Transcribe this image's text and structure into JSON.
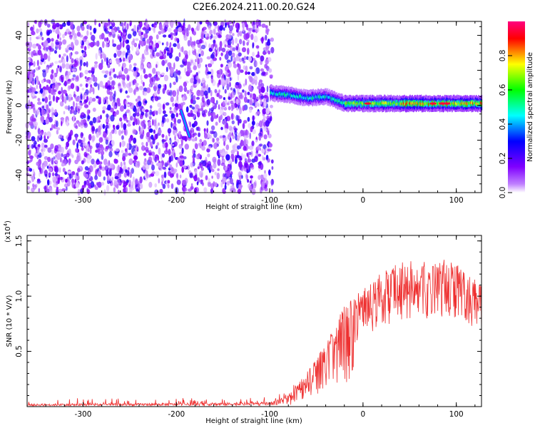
{
  "title": "C2E6.2024.211.00.20.G24",
  "chart_data": [
    {
      "type": "heatmap",
      "xlabel": "Height of straight line (km)",
      "ylabel": "Frequency (Hz)",
      "xlim": [
        -360,
        127
      ],
      "ylim": [
        -50,
        48
      ],
      "xticks": [
        -300,
        -200,
        -100,
        0,
        100
      ],
      "yticks": [
        -40,
        -20,
        0,
        20,
        40
      ],
      "colorbar": {
        "label": "Normalized spectral amplitude",
        "range": [
          0.0,
          1.0
        ],
        "ticks": [
          0.0,
          0.2,
          0.4,
          0.6,
          0.8
        ],
        "colormap": [
          "#ffffff",
          "#c080ff",
          "#8000ff",
          "#0000ff",
          "#00ffff",
          "#00ff00",
          "#ffff00",
          "#ff0000",
          "#ff0080"
        ]
      },
      "noise_region": {
        "x": [
          -360,
          -97
        ],
        "y": [
          -50,
          48
        ],
        "typical_amplitude": 0.3
      },
      "signal_track": [
        {
          "x": -100,
          "y": 7
        },
        {
          "x": -80,
          "y": 6
        },
        {
          "x": -60,
          "y": 4
        },
        {
          "x": -40,
          "y": 5
        },
        {
          "x": -20,
          "y": 1
        },
        {
          "x": 0,
          "y": 1
        },
        {
          "x": 20,
          "y": 1
        },
        {
          "x": 50,
          "y": 1
        },
        {
          "x": 80,
          "y": 1
        },
        {
          "x": 100,
          "y": 1
        },
        {
          "x": 127,
          "y": 1
        }
      ],
      "streak": {
        "x": [
          -195,
          -186
        ],
        "y": [
          -3,
          -18
        ],
        "amplitude": 0.45
      }
    },
    {
      "type": "line",
      "xlabel": "Height of straight line (km)",
      "ylabel": "SNR (10 * V/V)",
      "yscale_label": "(x10",
      "yscale_exp": "4",
      "xlim": [
        -360,
        127
      ],
      "ylim": [
        0,
        1.55
      ],
      "xticks": [
        -300,
        -200,
        -100,
        0,
        100
      ],
      "yticks": [
        0.5,
        1.0,
        1.5
      ],
      "ytick_labels": [
        "0.5",
        "1.0",
        "1.5"
      ],
      "series": [
        {
          "color": "#ee3030",
          "envelope": [
            {
              "x": -360,
              "y": 0.03
            },
            {
              "x": -200,
              "y": 0.04
            },
            {
              "x": -100,
              "y": 0.05
            },
            {
              "x": -80,
              "y": 0.12
            },
            {
              "x": -60,
              "y": 0.3
            },
            {
              "x": -40,
              "y": 0.6
            },
            {
              "x": -20,
              "y": 0.9
            },
            {
              "x": 0,
              "y": 1.05
            },
            {
              "x": 20,
              "y": 1.2
            },
            {
              "x": 40,
              "y": 1.3
            },
            {
              "x": 60,
              "y": 1.3
            },
            {
              "x": 80,
              "y": 1.27
            },
            {
              "x": 95,
              "y": 1.35
            },
            {
              "x": 110,
              "y": 1.2
            },
            {
              "x": 127,
              "y": 1.15
            }
          ]
        }
      ]
    }
  ]
}
